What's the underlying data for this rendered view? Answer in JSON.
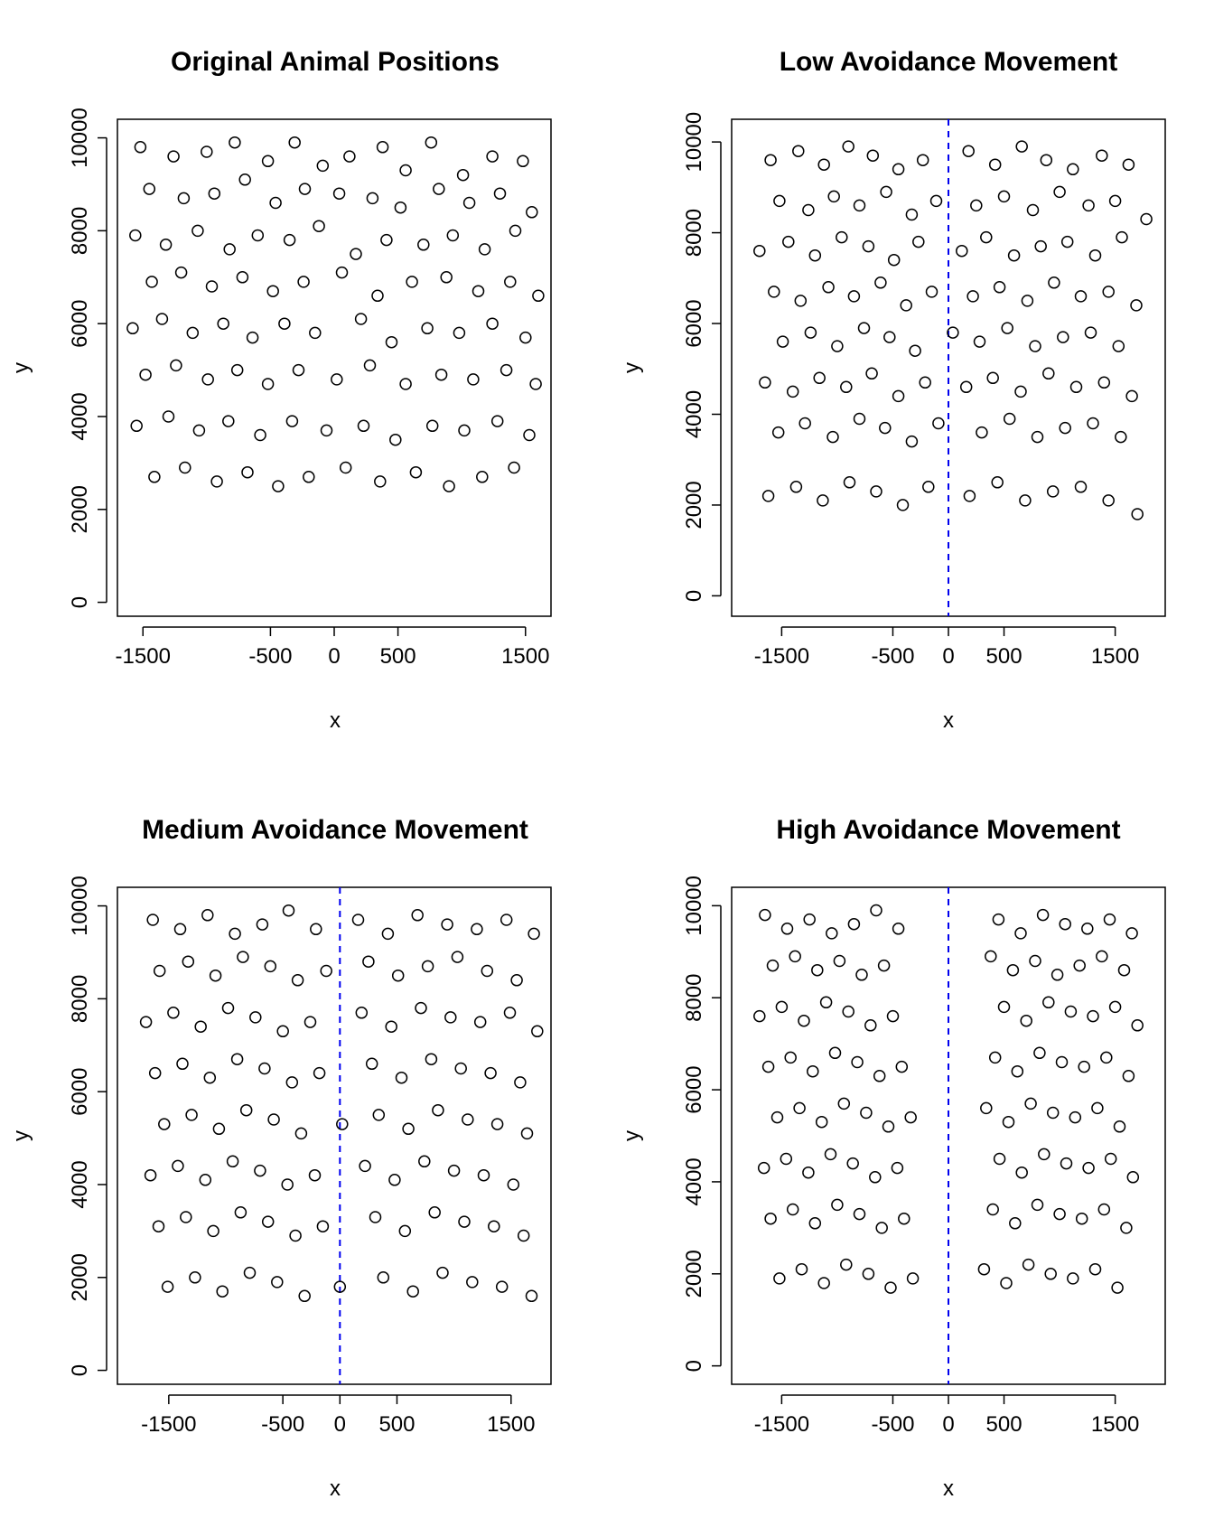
{
  "chart_data": [
    {
      "type": "scatter",
      "title": "Original Animal Positions",
      "xlabel": "x",
      "ylabel": "y",
      "xlim": [
        -1700,
        1700
      ],
      "ylim": [
        -300,
        10400
      ],
      "xticks": [
        -1500,
        -500,
        0,
        500,
        1500
      ],
      "xtick_labels": [
        "-1500",
        "-500",
        "0",
        "500",
        "1500"
      ],
      "yticks": [
        0,
        2000,
        4000,
        6000,
        8000,
        10000
      ],
      "ytick_labels": [
        "0",
        "2000",
        "4000",
        "6000",
        "8000",
        "10000"
      ],
      "center_line": false,
      "marker": "open-circle",
      "series": [
        {
          "x": [
            -1520,
            -1260,
            -1000,
            -780,
            -520,
            -310,
            -90,
            120,
            380,
            560,
            760,
            1010,
            1240,
            1480,
            -1450,
            -1180,
            -940,
            -700,
            -460,
            -230,
            40,
            300,
            520,
            820,
            1060,
            1300,
            1550,
            -1560,
            -1320,
            -1070,
            -820,
            -600,
            -350,
            -120,
            170,
            410,
            700,
            930,
            1180,
            1420,
            -1430,
            -1200,
            -960,
            -720,
            -480,
            -240,
            60,
            340,
            610,
            880,
            1130,
            1380,
            1600,
            -1580,
            -1350,
            -1110,
            -870,
            -640,
            -390,
            -150,
            210,
            450,
            730,
            980,
            1240,
            1500,
            -1480,
            -1240,
            -990,
            -760,
            -520,
            -280,
            20,
            280,
            560,
            840,
            1090,
            1350,
            1580,
            -1550,
            -1300,
            -1060,
            -830,
            -580,
            -330,
            -60,
            230,
            480,
            770,
            1020,
            1280,
            1530,
            -1410,
            -1170,
            -920,
            -680,
            -440,
            -200,
            90,
            360,
            640,
            900,
            1160,
            1410
          ],
          "y": [
            9800,
            9600,
            9700,
            9900,
            9500,
            9900,
            9400,
            9600,
            9800,
            9300,
            9900,
            9200,
            9600,
            9500,
            8900,
            8700,
            8800,
            9100,
            8600,
            8900,
            8800,
            8700,
            8500,
            8900,
            8600,
            8800,
            8400,
            7900,
            7700,
            8000,
            7600,
            7900,
            7800,
            8100,
            7500,
            7800,
            7700,
            7900,
            7600,
            8000,
            6900,
            7100,
            6800,
            7000,
            6700,
            6900,
            7100,
            6600,
            6900,
            7000,
            6700,
            6900,
            6600,
            5900,
            6100,
            5800,
            6000,
            5700,
            6000,
            5800,
            6100,
            5600,
            5900,
            5800,
            6000,
            5700,
            4900,
            5100,
            4800,
            5000,
            4700,
            5000,
            4800,
            5100,
            4700,
            4900,
            4800,
            5000,
            4700,
            3800,
            4000,
            3700,
            3900,
            3600,
            3900,
            3700,
            3800,
            3500,
            3800,
            3700,
            3900,
            3600,
            2700,
            2900,
            2600,
            2800,
            2500,
            2700,
            2900,
            2600,
            2800,
            2500,
            2700,
            2900
          ]
        }
      ]
    },
    {
      "type": "scatter",
      "title": "Low Avoidance Movement",
      "xlabel": "x",
      "ylabel": "y",
      "xlim": [
        -1950,
        1950
      ],
      "ylim": [
        -450,
        10500
      ],
      "xticks": [
        -1500,
        -500,
        0,
        500,
        1500
      ],
      "xtick_labels": [
        "-1500",
        "-500",
        "0",
        "500",
        "1500"
      ],
      "yticks": [
        0,
        2000,
        4000,
        6000,
        8000,
        10000
      ],
      "ytick_labels": [
        "0",
        "2000",
        "4000",
        "6000",
        "8000",
        "10000"
      ],
      "center_line": true,
      "center_x": 0,
      "marker": "open-circle",
      "series": [
        {
          "x": [
            -1600,
            -1350,
            -1120,
            -900,
            -680,
            -450,
            -230,
            180,
            420,
            660,
            880,
            1120,
            1380,
            1620,
            -1520,
            -1260,
            -1030,
            -800,
            -560,
            -330,
            -110,
            250,
            500,
            760,
            1000,
            1260,
            1500,
            1780,
            -1700,
            -1440,
            -1200,
            -960,
            -720,
            -490,
            -270,
            120,
            340,
            590,
            830,
            1070,
            1320,
            1560,
            -1570,
            -1330,
            -1080,
            -850,
            -610,
            -380,
            -150,
            220,
            460,
            710,
            950,
            1190,
            1440,
            1690,
            -1490,
            -1240,
            -1000,
            -760,
            -530,
            -300,
            40,
            280,
            530,
            780,
            1030,
            1280,
            1530,
            -1650,
            -1400,
            -1160,
            -920,
            -690,
            -450,
            -210,
            160,
            400,
            650,
            900,
            1150,
            1400,
            1650,
            -1530,
            -1290,
            -1040,
            -800,
            -570,
            -330,
            -90,
            300,
            550,
            800,
            1050,
            1300,
            1550,
            -1620,
            -1370,
            -1130,
            -890,
            -650,
            -410,
            -180,
            190,
            440,
            690,
            940,
            1190,
            1440,
            1700
          ],
          "y": [
            9600,
            9800,
            9500,
            9900,
            9700,
            9400,
            9600,
            9800,
            9500,
            9900,
            9600,
            9400,
            9700,
            9500,
            8700,
            8500,
            8800,
            8600,
            8900,
            8400,
            8700,
            8600,
            8800,
            8500,
            8900,
            8600,
            8700,
            8300,
            7600,
            7800,
            7500,
            7900,
            7700,
            7400,
            7800,
            7600,
            7900,
            7500,
            7700,
            7800,
            7500,
            7900,
            6700,
            6500,
            6800,
            6600,
            6900,
            6400,
            6700,
            6600,
            6800,
            6500,
            6900,
            6600,
            6700,
            6400,
            5600,
            5800,
            5500,
            5900,
            5700,
            5400,
            5800,
            5600,
            5900,
            5500,
            5700,
            5800,
            5500,
            4700,
            4500,
            4800,
            4600,
            4900,
            4400,
            4700,
            4600,
            4800,
            4500,
            4900,
            4600,
            4700,
            4400,
            3600,
            3800,
            3500,
            3900,
            3700,
            3400,
            3800,
            3600,
            3900,
            3500,
            3700,
            3800,
            3500,
            2200,
            2400,
            2100,
            2500,
            2300,
            2000,
            2400,
            2200,
            2500,
            2100,
            2300,
            2400,
            2100,
            1800
          ]
        }
      ]
    },
    {
      "type": "scatter",
      "title": "Medium Avoidance Movement",
      "xlabel": "x",
      "ylabel": "y",
      "xlim": [
        -1950,
        1850
      ],
      "ylim": [
        -300,
        10400
      ],
      "xticks": [
        -1500,
        -500,
        0,
        500,
        1500
      ],
      "xtick_labels": [
        "-1500",
        "-500",
        "0",
        "500",
        "1500"
      ],
      "yticks": [
        0,
        2000,
        4000,
        6000,
        8000,
        10000
      ],
      "ytick_labels": [
        "0",
        "2000",
        "4000",
        "6000",
        "8000",
        "10000"
      ],
      "center_line": true,
      "center_x": 0,
      "marker": "open-circle",
      "series": [
        {
          "x": [
            -1640,
            -1400,
            -1160,
            -920,
            -680,
            -450,
            -210,
            160,
            420,
            680,
            940,
            1200,
            1460,
            1700,
            -1580,
            -1330,
            -1090,
            -850,
            -610,
            -370,
            -120,
            250,
            510,
            770,
            1030,
            1290,
            1550,
            -1700,
            -1460,
            -1220,
            -980,
            -740,
            -500,
            -260,
            190,
            450,
            710,
            970,
            1230,
            1490,
            1730,
            -1620,
            -1380,
            -1140,
            -900,
            -660,
            -420,
            -180,
            280,
            540,
            800,
            1060,
            1320,
            1580,
            -1540,
            -1300,
            -1060,
            -820,
            -580,
            -340,
            20,
            340,
            600,
            860,
            1120,
            1380,
            1640,
            -1660,
            -1420,
            -1180,
            -940,
            -700,
            -460,
            -220,
            220,
            480,
            740,
            1000,
            1260,
            1520,
            -1590,
            -1350,
            -1110,
            -870,
            -630,
            -390,
            -150,
            310,
            570,
            830,
            1090,
            1350,
            1610,
            -1510,
            -1270,
            -1030,
            -790,
            -550,
            -310,
            0,
            380,
            640,
            900,
            1160,
            1420,
            1680
          ],
          "y": [
            9700,
            9500,
            9800,
            9400,
            9600,
            9900,
            9500,
            9700,
            9400,
            9800,
            9600,
            9500,
            9700,
            9400,
            8600,
            8800,
            8500,
            8900,
            8700,
            8400,
            8600,
            8800,
            8500,
            8700,
            8900,
            8600,
            8400,
            7500,
            7700,
            7400,
            7800,
            7600,
            7300,
            7500,
            7700,
            7400,
            7800,
            7600,
            7500,
            7700,
            7300,
            6400,
            6600,
            6300,
            6700,
            6500,
            6200,
            6400,
            6600,
            6300,
            6700,
            6500,
            6400,
            6200,
            5300,
            5500,
            5200,
            5600,
            5400,
            5100,
            5300,
            5500,
            5200,
            5600,
            5400,
            5300,
            5100,
            4200,
            4400,
            4100,
            4500,
            4300,
            4000,
            4200,
            4400,
            4100,
            4500,
            4300,
            4200,
            4000,
            3100,
            3300,
            3000,
            3400,
            3200,
            2900,
            3100,
            3300,
            3000,
            3400,
            3200,
            3100,
            2900,
            1800,
            2000,
            1700,
            2100,
            1900,
            1600,
            1800,
            2000,
            1700,
            2100,
            1900,
            1800,
            1600
          ]
        }
      ]
    },
    {
      "type": "scatter",
      "title": "High Avoidance Movement",
      "xlabel": "x",
      "ylabel": "y",
      "xlim": [
        -1950,
        1950
      ],
      "ylim": [
        -400,
        10400
      ],
      "xticks": [
        -1500,
        -500,
        0,
        500,
        1500
      ],
      "xtick_labels": [
        "-1500",
        "-500",
        "0",
        "500",
        "1500"
      ],
      "yticks": [
        0,
        2000,
        4000,
        6000,
        8000,
        10000
      ],
      "ytick_labels": [
        "0",
        "2000",
        "4000",
        "6000",
        "8000",
        "10000"
      ],
      "center_line": true,
      "center_x": 0,
      "marker": "open-circle",
      "series": [
        {
          "x": [
            -1650,
            -1450,
            -1250,
            -1050,
            -850,
            -650,
            -450,
            450,
            650,
            850,
            1050,
            1250,
            1450,
            1650,
            -1580,
            -1380,
            -1180,
            -980,
            -780,
            -580,
            380,
            580,
            780,
            980,
            1180,
            1380,
            1580,
            -1700,
            -1500,
            -1300,
            -1100,
            -900,
            -700,
            -500,
            500,
            700,
            900,
            1100,
            1300,
            1500,
            1700,
            -1620,
            -1420,
            -1220,
            -1020,
            -820,
            -620,
            -420,
            420,
            620,
            820,
            1020,
            1220,
            1420,
            1620,
            -1540,
            -1340,
            -1140,
            -940,
            -740,
            -540,
            -340,
            340,
            540,
            740,
            940,
            1140,
            1340,
            1540,
            -1660,
            -1460,
            -1260,
            -1060,
            -860,
            -660,
            -460,
            460,
            660,
            860,
            1060,
            1260,
            1460,
            1660,
            -1600,
            -1400,
            -1200,
            -1000,
            -800,
            -600,
            -400,
            400,
            600,
            800,
            1000,
            1200,
            1400,
            1600,
            -1520,
            -1320,
            -1120,
            -920,
            -720,
            -520,
            -320,
            320,
            520,
            720,
            920,
            1120,
            1320,
            1520
          ],
          "y": [
            9800,
            9500,
            9700,
            9400,
            9600,
            9900,
            9500,
            9700,
            9400,
            9800,
            9600,
            9500,
            9700,
            9400,
            8700,
            8900,
            8600,
            8800,
            8500,
            8700,
            8900,
            8600,
            8800,
            8500,
            8700,
            8900,
            8600,
            7600,
            7800,
            7500,
            7900,
            7700,
            7400,
            7600,
            7800,
            7500,
            7900,
            7700,
            7600,
            7800,
            7400,
            6500,
            6700,
            6400,
            6800,
            6600,
            6300,
            6500,
            6700,
            6400,
            6800,
            6600,
            6500,
            6700,
            6300,
            5400,
            5600,
            5300,
            5700,
            5500,
            5200,
            5400,
            5600,
            5300,
            5700,
            5500,
            5400,
            5600,
            5200,
            4300,
            4500,
            4200,
            4600,
            4400,
            4100,
            4300,
            4500,
            4200,
            4600,
            4400,
            4300,
            4500,
            4100,
            3200,
            3400,
            3100,
            3500,
            3300,
            3000,
            3200,
            3400,
            3100,
            3500,
            3300,
            3200,
            3400,
            3000,
            1900,
            2100,
            1800,
            2200,
            2000,
            1700,
            1900,
            2100,
            1800,
            2200,
            2000,
            1900,
            2100,
            1700
          ]
        }
      ]
    }
  ]
}
